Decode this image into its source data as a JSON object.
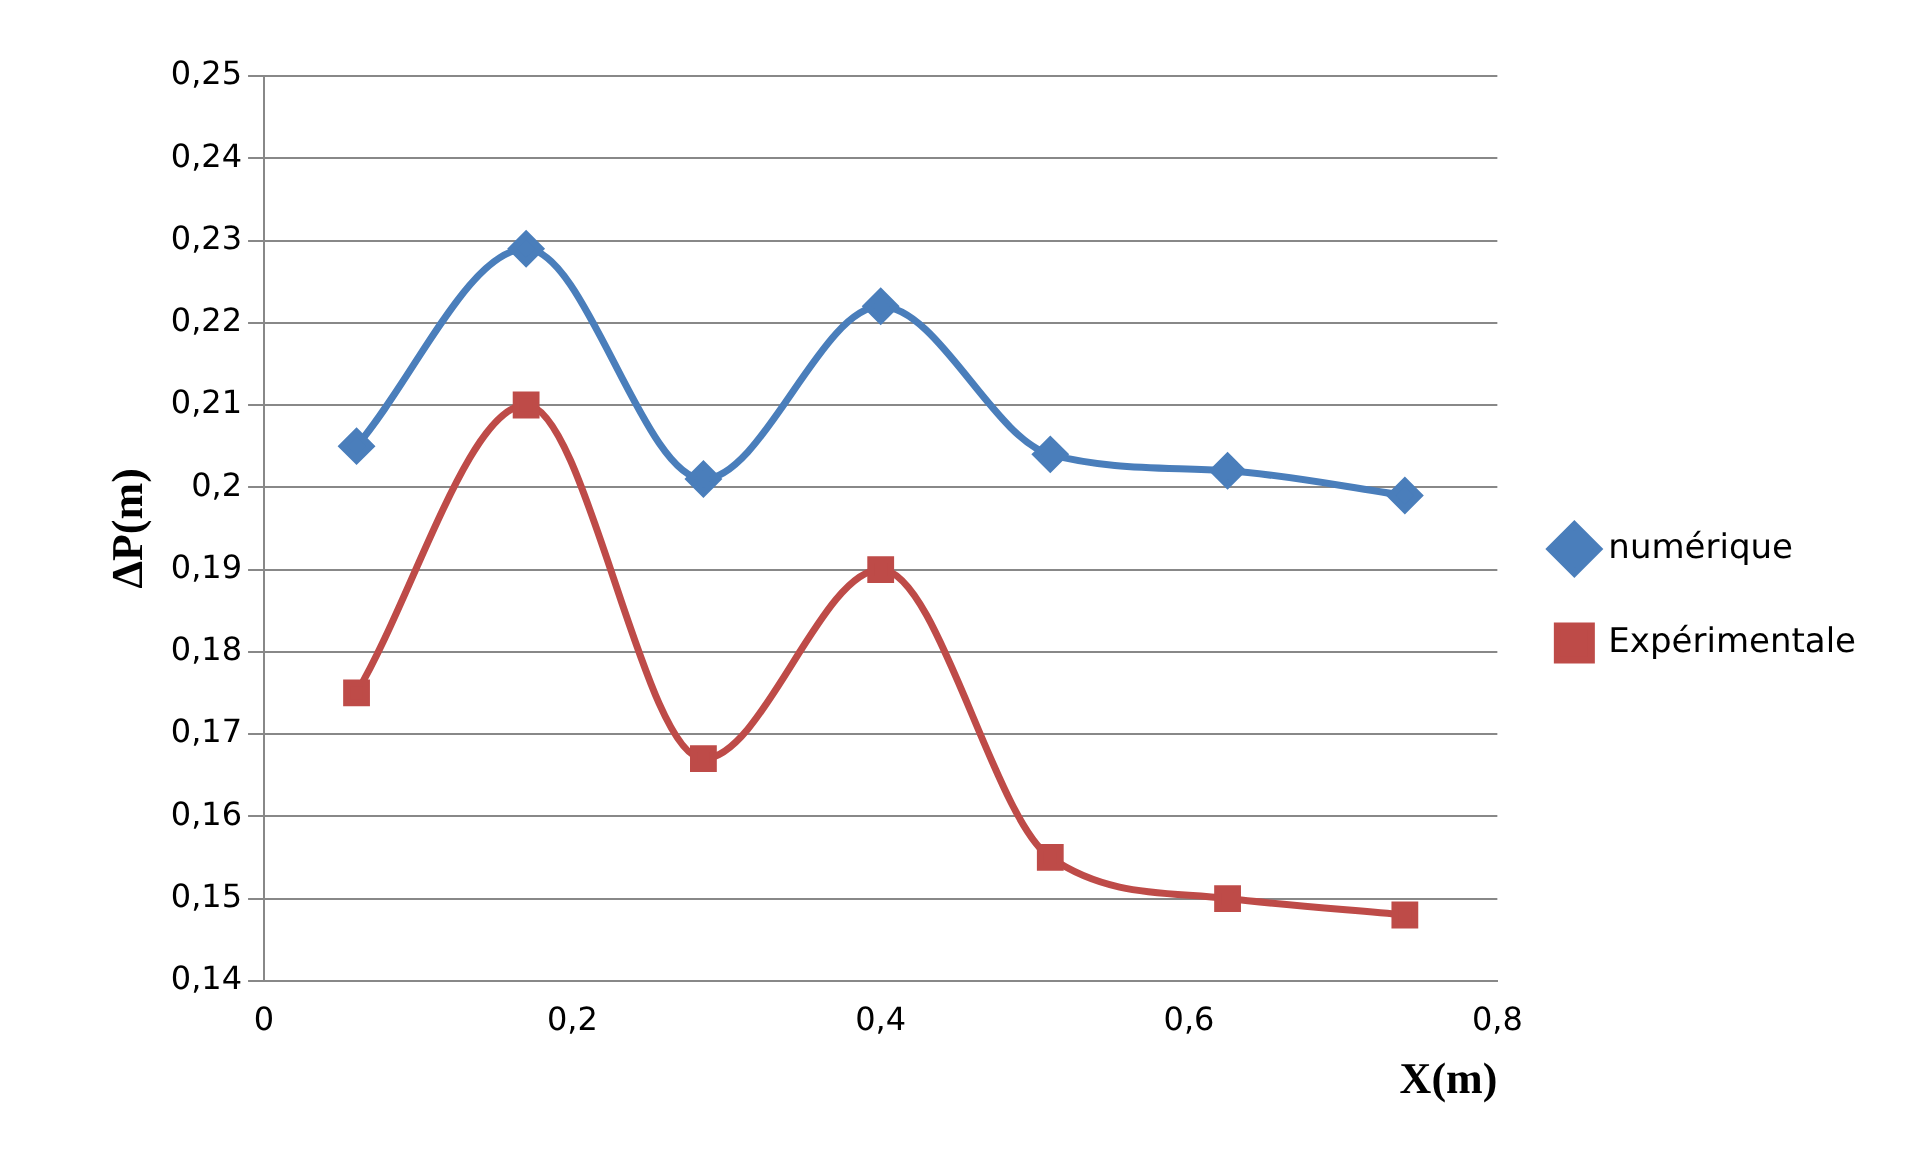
{
  "chart_data": {
    "type": "line",
    "xlabel": "X(m)",
    "ylabel": "ΔP(m)",
    "xlim": [
      0,
      0.8
    ],
    "xticks": [
      0,
      {
        "value": 0.2,
        "label": "0,2"
      },
      {
        "value": 0.4,
        "label": "0,4"
      },
      {
        "value": 0.6,
        "label": "0,6"
      },
      {
        "value": 0.8,
        "label": "0,8"
      }
    ],
    "ylim": [
      0.14,
      0.25
    ],
    "yticks": [
      {
        "value": 0.14,
        "label": "0,14"
      },
      {
        "value": 0.15,
        "label": "0,15"
      },
      {
        "value": 0.16,
        "label": "0,16"
      },
      {
        "value": 0.17,
        "label": "0,17"
      },
      {
        "value": 0.18,
        "label": "0,18"
      },
      {
        "value": 0.19,
        "label": "0,19"
      },
      {
        "value": 0.2,
        "label": "0,2"
      },
      {
        "value": 0.21,
        "label": "0,21"
      },
      {
        "value": 0.22,
        "label": "0,22"
      },
      {
        "value": 0.23,
        "label": "0,23"
      },
      {
        "value": 0.24,
        "label": "0,24"
      },
      {
        "value": 0.25,
        "label": "0,25"
      }
    ],
    "x": [
      0.06,
      0.17,
      0.285,
      0.4,
      0.51,
      0.625,
      0.74
    ],
    "series": [
      {
        "name": "numérique",
        "color": "#4a7ebb",
        "marker": "diamond",
        "values": [
          0.205,
          0.229,
          0.201,
          0.222,
          0.204,
          0.202,
          0.199
        ]
      },
      {
        "name": "Expérimentale",
        "color": "#be4b48",
        "marker": "square",
        "values": [
          0.175,
          0.21,
          0.167,
          0.19,
          0.155,
          0.15,
          0.148
        ]
      }
    ],
    "grid": "y",
    "legend": "right",
    "line_style": "solid"
  }
}
